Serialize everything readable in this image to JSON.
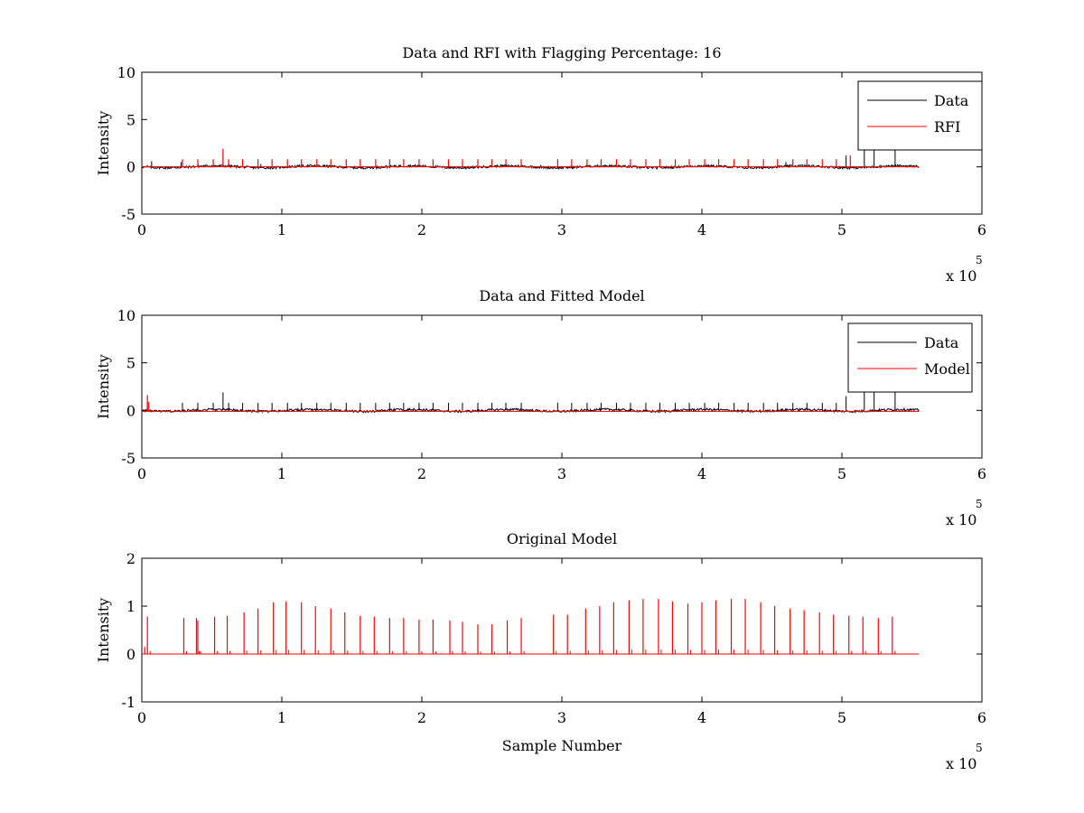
{
  "figure": {
    "background": "#ffffff"
  },
  "chart_data": [
    {
      "type": "line",
      "title": "Data and RFI with Flagging Percentage: 16",
      "xlabel": "",
      "ylabel": "Intensity",
      "xlim": [
        0,
        6
      ],
      "ylim": [
        -5,
        10
      ],
      "xticks": [
        "0",
        "1",
        "2",
        "3",
        "4",
        "5",
        "6"
      ],
      "yticks": [
        "-5",
        "0",
        "5",
        "10"
      ],
      "x_scale_base": "x 10",
      "x_scale_exponent": "5",
      "x_end": 5.55,
      "legend": {
        "position": "top-right",
        "entries": [
          {
            "name": "Data",
            "color": "#000000"
          },
          {
            "name": "RFI",
            "color": "#ff0000"
          }
        ]
      },
      "series": [
        {
          "name": "Data",
          "color": "#000000",
          "kind": "noise",
          "amplitude": 0.12,
          "spikes": [
            [
              0.07,
              0.6
            ],
            [
              0.28,
              0.5
            ],
            [
              0.58,
              1.5
            ],
            [
              0.85,
              0.3
            ],
            [
              2.85,
              0.2
            ],
            [
              3.6,
              0.4
            ],
            [
              4.6,
              0.5
            ],
            [
              5.03,
              1.2
            ],
            [
              5.16,
              3.8
            ],
            [
              5.23,
              3.8
            ],
            [
              5.38,
              3.8
            ]
          ]
        },
        {
          "name": "RFI",
          "color": "#ff0000",
          "kind": "spikes",
          "baseline": 0,
          "spikes": [
            [
              0.04,
              0.2
            ],
            [
              0.29,
              0.8
            ],
            [
              0.4,
              0.8
            ],
            [
              0.51,
              0.8
            ],
            [
              0.58,
              1.9
            ],
            [
              0.62,
              0.8
            ],
            [
              0.72,
              0.8
            ],
            [
              0.83,
              0.8
            ],
            [
              0.93,
              0.8
            ],
            [
              1.04,
              0.8
            ],
            [
              1.14,
              0.8
            ],
            [
              1.25,
              0.8
            ],
            [
              1.35,
              0.8
            ],
            [
              1.46,
              0.8
            ],
            [
              1.56,
              0.8
            ],
            [
              1.67,
              0.8
            ],
            [
              1.77,
              0.8
            ],
            [
              1.87,
              0.8
            ],
            [
              1.98,
              0.8
            ],
            [
              2.08,
              0.8
            ],
            [
              2.19,
              0.8
            ],
            [
              2.29,
              0.8
            ],
            [
              2.4,
              0.8
            ],
            [
              2.5,
              0.8
            ],
            [
              2.6,
              0.8
            ],
            [
              2.71,
              0.8
            ],
            [
              2.97,
              0.8
            ],
            [
              3.07,
              0.8
            ],
            [
              3.18,
              0.8
            ],
            [
              3.28,
              0.8
            ],
            [
              3.39,
              0.8
            ],
            [
              3.49,
              0.8
            ],
            [
              3.6,
              0.8
            ],
            [
              3.7,
              0.8
            ],
            [
              3.81,
              0.8
            ],
            [
              3.91,
              0.8
            ],
            [
              4.02,
              0.8
            ],
            [
              4.12,
              0.8
            ],
            [
              4.23,
              0.8
            ],
            [
              4.33,
              0.8
            ],
            [
              4.44,
              0.8
            ],
            [
              4.54,
              0.8
            ],
            [
              4.65,
              0.8
            ],
            [
              4.75,
              0.8
            ],
            [
              4.86,
              0.8
            ],
            [
              4.96,
              0.8
            ],
            [
              5.06,
              1.2
            ]
          ]
        }
      ]
    },
    {
      "type": "line",
      "title": "Data and Fitted Model",
      "xlabel": "",
      "ylabel": "Intensity",
      "xlim": [
        0,
        6
      ],
      "ylim": [
        -5,
        10
      ],
      "xticks": [
        "0",
        "1",
        "2",
        "3",
        "4",
        "5",
        "6"
      ],
      "yticks": [
        "-5",
        "0",
        "5",
        "10"
      ],
      "x_scale_base": "x 10",
      "x_scale_exponent": "5",
      "x_end": 5.55,
      "legend": {
        "position": "top-right",
        "entries": [
          {
            "name": "Data",
            "color": "#000000"
          },
          {
            "name": "Model",
            "color": "#ff0000"
          }
        ]
      },
      "series": [
        {
          "name": "Data",
          "color": "#000000",
          "kind": "noise",
          "amplitude": 0.12,
          "spikes": [
            [
              0.04,
              0.9
            ],
            [
              0.29,
              0.8
            ],
            [
              0.4,
              0.8
            ],
            [
              0.51,
              0.8
            ],
            [
              0.58,
              1.9
            ],
            [
              0.62,
              0.8
            ],
            [
              0.72,
              0.8
            ],
            [
              0.83,
              0.8
            ],
            [
              0.93,
              0.8
            ],
            [
              1.04,
              0.8
            ],
            [
              1.14,
              0.8
            ],
            [
              1.25,
              0.8
            ],
            [
              1.35,
              0.8
            ],
            [
              1.46,
              0.8
            ],
            [
              1.56,
              0.8
            ],
            [
              1.67,
              0.8
            ],
            [
              1.77,
              0.8
            ],
            [
              1.87,
              0.8
            ],
            [
              1.98,
              0.8
            ],
            [
              2.08,
              0.8
            ],
            [
              2.19,
              0.8
            ],
            [
              2.29,
              0.8
            ],
            [
              2.4,
              0.8
            ],
            [
              2.5,
              0.8
            ],
            [
              2.6,
              0.8
            ],
            [
              2.71,
              0.8
            ],
            [
              2.97,
              0.8
            ],
            [
              3.07,
              0.8
            ],
            [
              3.18,
              0.8
            ],
            [
              3.28,
              0.8
            ],
            [
              3.39,
              0.8
            ],
            [
              3.49,
              0.8
            ],
            [
              3.6,
              0.8
            ],
            [
              3.7,
              0.8
            ],
            [
              3.81,
              0.8
            ],
            [
              3.91,
              0.8
            ],
            [
              4.02,
              0.8
            ],
            [
              4.12,
              0.8
            ],
            [
              4.23,
              0.8
            ],
            [
              4.33,
              0.8
            ],
            [
              4.44,
              0.8
            ],
            [
              4.54,
              0.8
            ],
            [
              4.65,
              0.8
            ],
            [
              4.75,
              0.8
            ],
            [
              4.86,
              0.8
            ],
            [
              4.96,
              0.8
            ],
            [
              5.03,
              1.5
            ],
            [
              5.16,
              2.7
            ],
            [
              5.23,
              2.7
            ],
            [
              5.38,
              2.7
            ]
          ]
        },
        {
          "name": "Model",
          "color": "#ff0000",
          "kind": "spikes",
          "baseline": -0.1,
          "spikes": [
            [
              0.04,
              1.6
            ],
            [
              0.05,
              0.9
            ]
          ]
        }
      ]
    },
    {
      "type": "line",
      "title": "Original Model",
      "xlabel": "Sample Number",
      "ylabel": "Intensity",
      "xlim": [
        0,
        6
      ],
      "ylim": [
        -1,
        2
      ],
      "xticks": [
        "0",
        "1",
        "2",
        "3",
        "4",
        "5",
        "6"
      ],
      "yticks": [
        "-1",
        "0",
        "1",
        "2"
      ],
      "x_scale_base": "x 10",
      "x_scale_exponent": "5",
      "x_end": 5.55,
      "legend": null,
      "series": [
        {
          "name": "Original Model",
          "color": "#ff0000",
          "kind": "spikes",
          "baseline": 0,
          "spikes": [
            [
              0.02,
              0.15
            ],
            [
              0.04,
              0.78
            ],
            [
              0.3,
              0.75
            ],
            [
              0.39,
              0.75
            ],
            [
              0.4,
              0.7
            ],
            [
              0.52,
              0.78
            ],
            [
              0.61,
              0.8
            ],
            [
              0.73,
              0.87
            ],
            [
              0.83,
              0.95
            ],
            [
              0.94,
              1.08
            ],
            [
              1.03,
              1.1
            ],
            [
              1.14,
              1.08
            ],
            [
              1.24,
              1.0
            ],
            [
              1.35,
              0.95
            ],
            [
              1.45,
              0.87
            ],
            [
              1.56,
              0.8
            ],
            [
              1.66,
              0.78
            ],
            [
              1.77,
              0.75
            ],
            [
              1.87,
              0.75
            ],
            [
              1.98,
              0.72
            ],
            [
              2.08,
              0.72
            ],
            [
              2.2,
              0.7
            ],
            [
              2.29,
              0.67
            ],
            [
              2.4,
              0.62
            ],
            [
              2.5,
              0.62
            ],
            [
              2.61,
              0.7
            ],
            [
              2.71,
              0.75
            ],
            [
              2.94,
              0.82
            ],
            [
              3.04,
              0.82
            ],
            [
              3.17,
              0.95
            ],
            [
              3.27,
              1.0
            ],
            [
              3.37,
              1.08
            ],
            [
              3.48,
              1.12
            ],
            [
              3.58,
              1.15
            ],
            [
              3.69,
              1.15
            ],
            [
              3.79,
              1.1
            ],
            [
              3.9,
              1.05
            ],
            [
              4.0,
              1.08
            ],
            [
              4.1,
              1.12
            ],
            [
              4.21,
              1.15
            ],
            [
              4.31,
              1.15
            ],
            [
              4.42,
              1.08
            ],
            [
              4.52,
              1.0
            ],
            [
              4.63,
              0.95
            ],
            [
              4.73,
              0.92
            ],
            [
              4.84,
              0.87
            ],
            [
              4.94,
              0.82
            ],
            [
              5.05,
              0.8
            ],
            [
              5.15,
              0.78
            ],
            [
              5.26,
              0.75
            ],
            [
              5.36,
              0.78
            ]
          ]
        }
      ]
    }
  ]
}
